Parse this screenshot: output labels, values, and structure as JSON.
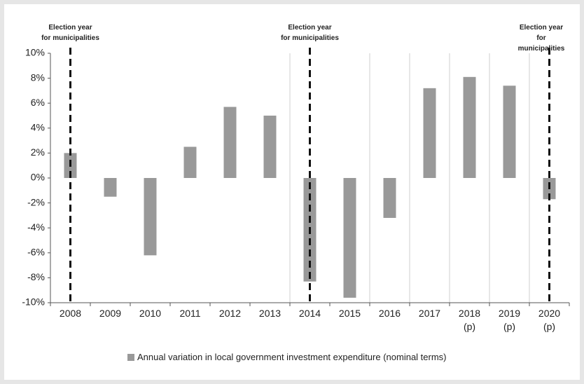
{
  "chart_data": {
    "type": "bar",
    "categories": [
      "2008",
      "2009",
      "2010",
      "2011",
      "2012",
      "2013",
      "2014",
      "2015",
      "2016",
      "2017",
      "2018\n(p)",
      "2019\n(p)",
      "2020\n(p)"
    ],
    "series": [
      {
        "name": "Annual variation in local government investment expenditure (nominal terms)",
        "color": "#999999",
        "values": [
          2.0,
          -1.5,
          -6.2,
          2.5,
          5.7,
          5.0,
          -8.3,
          -9.6,
          -3.2,
          7.2,
          8.1,
          7.4,
          -1.7
        ]
      }
    ],
    "ylim": [
      -10,
      10
    ],
    "yticks": [
      {
        "value": -10,
        "label": "-10%"
      },
      {
        "value": -8,
        "label": "-8%"
      },
      {
        "value": -6,
        "label": "-6%"
      },
      {
        "value": -4,
        "label": "-4%"
      },
      {
        "value": -2,
        "label": "-2%"
      },
      {
        "value": 0,
        "label": "0%"
      },
      {
        "value": 2,
        "label": "2%"
      },
      {
        "value": 4,
        "label": "4%"
      },
      {
        "value": 6,
        "label": "6%"
      },
      {
        "value": 8,
        "label": "8%"
      },
      {
        "value": 10,
        "label": "10%"
      }
    ],
    "annotations": [
      {
        "text": "Election year\nfor municipalities",
        "category": "2008"
      },
      {
        "text": "Election year\nfor municipalities",
        "category": "2014"
      },
      {
        "text": "Election year\nfor municipalities",
        "category": "2020\n(p)"
      }
    ],
    "legend": "bottom"
  }
}
